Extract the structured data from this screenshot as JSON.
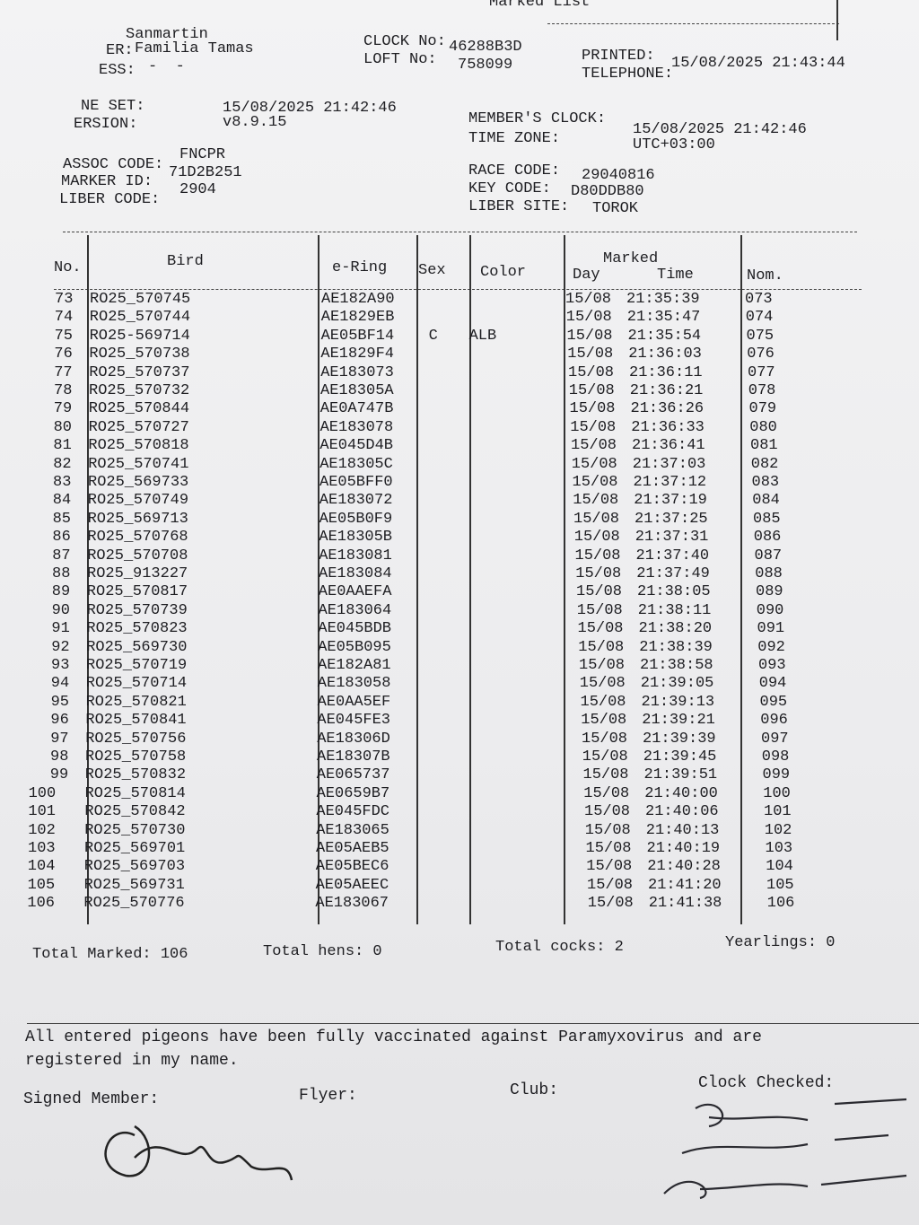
{
  "header": {
    "title": "Marked List",
    "fields": [
      {
        "value": "Sanmartin"
      },
      {
        "label": "ER:",
        "value": "Familia Tamas"
      },
      {
        "label": "ESS:",
        "value": "-  -"
      },
      {
        "label": "CLOCK No:",
        "value": "46288B3D"
      },
      {
        "label": "LOFT No:",
        "value": "758099"
      },
      {
        "label": "PRINTED:",
        "value": "15/08/2025 21:43:44"
      },
      {
        "label": "TELEPHONE:"
      },
      {
        "label": "NE SET:",
        "value": "15/08/2025 21:42:46"
      },
      {
        "label": "ERSION:",
        "value": "v8.9.15"
      },
      {
        "label": "MEMBER'S CLOCK:",
        "value": "15/08/2025 21:42:46"
      },
      {
        "label": "TIME ZONE:",
        "value": "UTC+03:00"
      },
      {
        "label": "ASSOC CODE:",
        "value": "FNCPR"
      },
      {
        "label": "MARKER ID:",
        "value": "71D2B251"
      },
      {
        "label": "LIBER CODE:",
        "value": "2904"
      },
      {
        "label": "RACE CODE:",
        "value": "29040816"
      },
      {
        "label": "KEY CODE:",
        "value": "D80DDB80"
      },
      {
        "label": "LIBER SITE:",
        "value": "TOROK"
      }
    ]
  },
  "table": {
    "columns": [
      "No.",
      "Bird",
      "e-Ring",
      "Sex",
      "Color",
      "Marked",
      "Day",
      "Time",
      "Nom."
    ],
    "rows": [
      [
        "73",
        "RO25_570745",
        "AE182A90",
        null,
        null,
        "15/08",
        "21:35:39",
        "073"
      ],
      [
        "74",
        "RO25_570744",
        "AE1829EB",
        null,
        null,
        "15/08",
        "21:35:47",
        "074"
      ],
      [
        "75",
        "RO25-569714",
        "AE05BF14",
        "C",
        "ALB",
        "15/08",
        "21:35:54",
        "075"
      ],
      [
        "76",
        "RO25_570738",
        "AE1829F4",
        null,
        null,
        "15/08",
        "21:36:03",
        "076"
      ],
      [
        "77",
        "RO25_570737",
        "AE183073",
        null,
        null,
        "15/08",
        "21:36:11",
        "077"
      ],
      [
        "78",
        "RO25_570732",
        "AE18305A",
        null,
        null,
        "15/08",
        "21:36:21",
        "078"
      ],
      [
        "79",
        "RO25_570844",
        "AE0A747B",
        null,
        null,
        "15/08",
        "21:36:26",
        "079"
      ],
      [
        "80",
        "RO25_570727",
        "AE183078",
        null,
        null,
        "15/08",
        "21:36:33",
        "080"
      ],
      [
        "81",
        "RO25_570818",
        "AE045D4B",
        null,
        null,
        "15/08",
        "21:36:41",
        "081"
      ],
      [
        "82",
        "RO25_570741",
        "AE18305C",
        null,
        null,
        "15/08",
        "21:37:03",
        "082"
      ],
      [
        "83",
        "RO25_569733",
        "AE05BFF0",
        null,
        null,
        "15/08",
        "21:37:12",
        "083"
      ],
      [
        "84",
        "RO25_570749",
        "AE183072",
        null,
        null,
        "15/08",
        "21:37:19",
        "084"
      ],
      [
        "85",
        "RO25_569713",
        "AE05B0F9",
        null,
        null,
        "15/08",
        "21:37:25",
        "085"
      ],
      [
        "86",
        "RO25_570768",
        "AE18305B",
        null,
        null,
        "15/08",
        "21:37:31",
        "086"
      ],
      [
        "87",
        "RO25_570708",
        "AE183081",
        null,
        null,
        "15/08",
        "21:37:40",
        "087"
      ],
      [
        "88",
        "RO25_913227",
        "AE183084",
        null,
        null,
        "15/08",
        "21:37:49",
        "088"
      ],
      [
        "89",
        "RO25_570817",
        "AE0AAEFA",
        null,
        null,
        "15/08",
        "21:38:05",
        "089"
      ],
      [
        "90",
        "RO25_570739",
        "AE183064",
        null,
        null,
        "15/08",
        "21:38:11",
        "090"
      ],
      [
        "91",
        "RO25_570823",
        "AE045BDB",
        null,
        null,
        "15/08",
        "21:38:20",
        "091"
      ],
      [
        "92",
        "RO25_569730",
        "AE05B095",
        null,
        null,
        "15/08",
        "21:38:39",
        "092"
      ],
      [
        "93",
        "RO25_570719",
        "AE182A81",
        null,
        null,
        "15/08",
        "21:38:58",
        "093"
      ],
      [
        "94",
        "RO25_570714",
        "AE183058",
        null,
        null,
        "15/08",
        "21:39:05",
        "094"
      ],
      [
        "95",
        "RO25_570821",
        "AE0AA5EF",
        null,
        null,
        "15/08",
        "21:39:13",
        "095"
      ],
      [
        "96",
        "RO25_570841",
        "AE045FE3",
        null,
        null,
        "15/08",
        "21:39:21",
        "096"
      ],
      [
        "97",
        "RO25_570756",
        "AE18306D",
        null,
        null,
        "15/08",
        "21:39:39",
        "097"
      ],
      [
        "98",
        "RO25_570758",
        "AE18307B",
        null,
        null,
        "15/08",
        "21:39:45",
        "098"
      ],
      [
        "99",
        "RO25_570832",
        "AE065737",
        null,
        null,
        "15/08",
        "21:39:51",
        "099"
      ],
      [
        "100",
        "RO25_570814",
        "AE0659B7",
        null,
        null,
        "15/08",
        "21:40:00",
        "100"
      ],
      [
        "101",
        "RO25_570842",
        "AE045FDC",
        null,
        null,
        "15/08",
        "21:40:06",
        "101"
      ],
      [
        "102",
        "RO25_570730",
        "AE183065",
        null,
        null,
        "15/08",
        "21:40:13",
        "102"
      ],
      [
        "103",
        "RO25_569701",
        "AE05AEB5",
        null,
        null,
        "15/08",
        "21:40:19",
        "103"
      ],
      [
        "104",
        "RO25_569703",
        "AE05BEC6",
        null,
        null,
        "15/08",
        "21:40:28",
        "104"
      ],
      [
        "105",
        "RO25_569731",
        "AE05AEEC",
        null,
        null,
        "15/08",
        "21:41:20",
        "105"
      ],
      [
        "106",
        "RO25_570776",
        "AE183067",
        null,
        null,
        "15/08",
        "21:41:38",
        "106"
      ]
    ]
  },
  "totals": [
    {
      "label": "Total Marked:",
      "value": "106"
    },
    {
      "label": "Total hens:",
      "value": "0"
    },
    {
      "label": "Total cocks:",
      "value": "2"
    },
    {
      "label": "Yearlings:",
      "value": "0"
    }
  ],
  "footer": {
    "declaration": [
      "All entered pigeons have been fully vaccinated against Paramyxovirus and are",
      "registered in my name."
    ],
    "signatures": [
      "Signed Member:",
      "Flyer:",
      "Club:",
      "Clock Checked:"
    ]
  }
}
